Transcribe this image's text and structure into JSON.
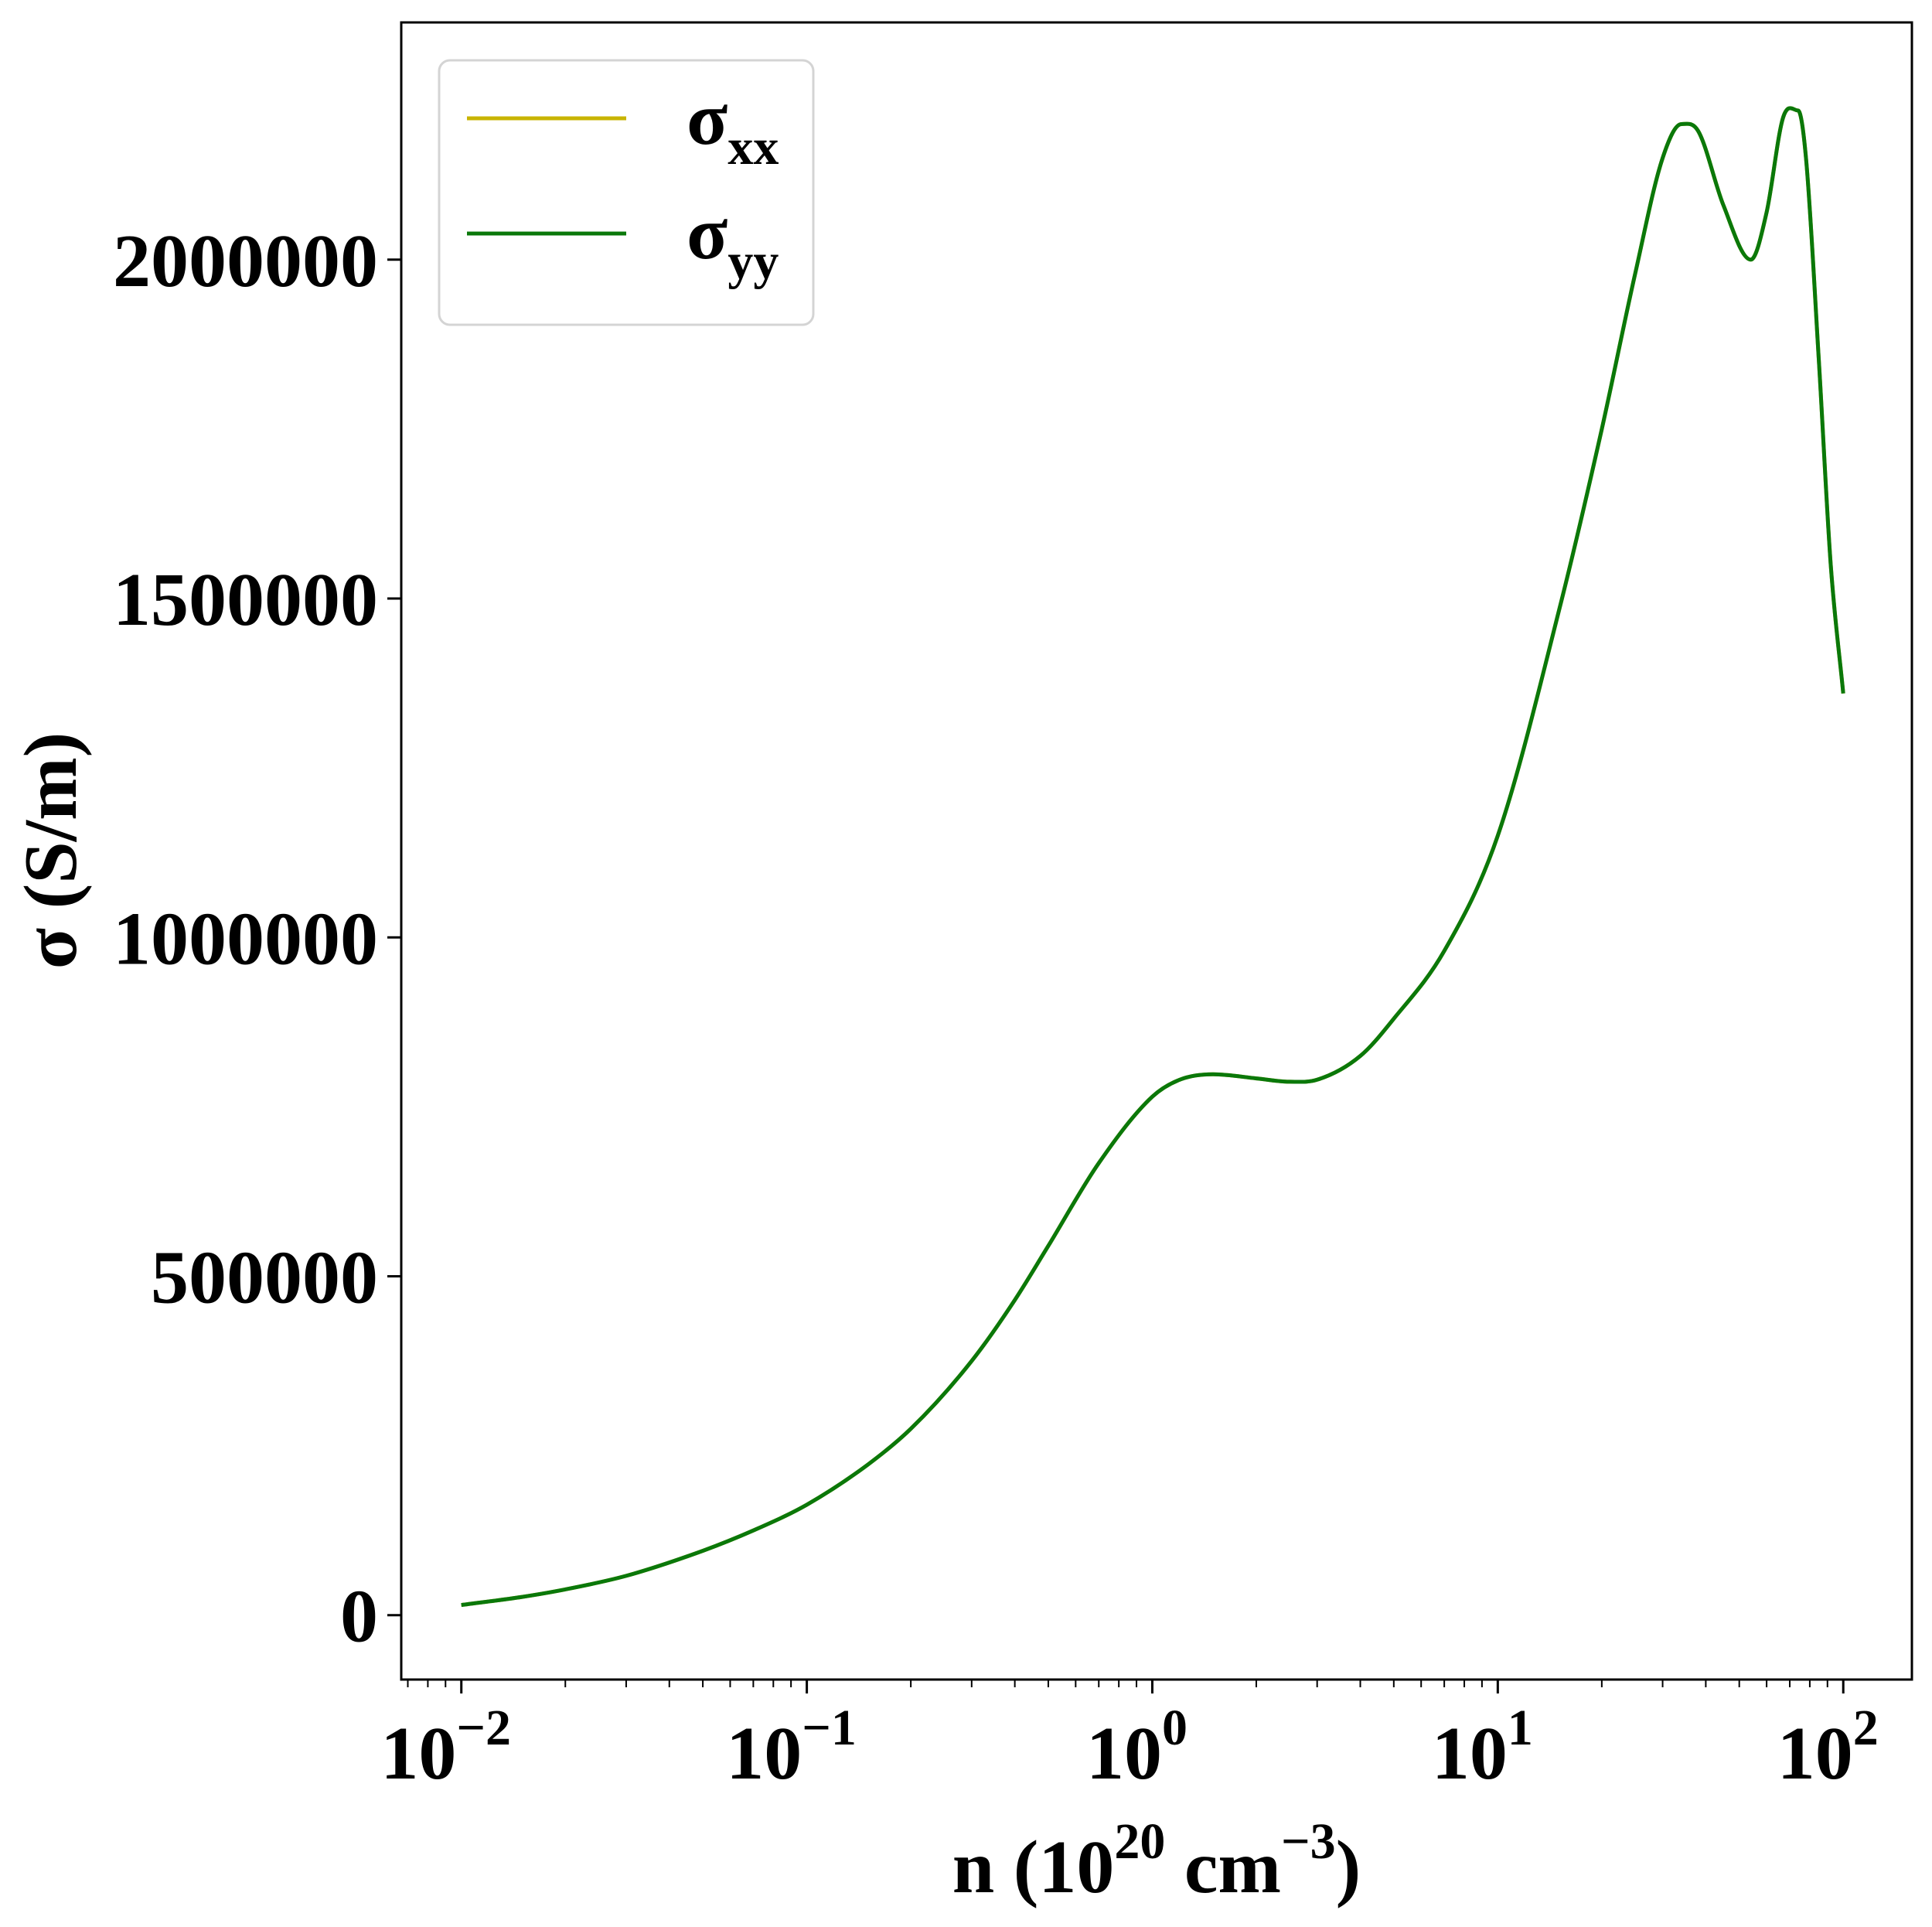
{
  "chart_data": {
    "type": "line",
    "xscale": "log",
    "xlim": [
      0.0067,
      158
    ],
    "ylim": [
      -95000,
      2350000
    ],
    "grid": false,
    "legend_position": "top-left",
    "xlabel": {
      "base": "n (10",
      "exp1": "20",
      "mid": " cm",
      "exp2": "−3",
      "end": ")"
    },
    "ylabel": "σ (S/m)",
    "x_ticks": [
      {
        "value": 0.01,
        "base": "10",
        "exp": "−2"
      },
      {
        "value": 0.1,
        "base": "10",
        "exp": "−1"
      },
      {
        "value": 1,
        "base": "10",
        "exp": "0"
      },
      {
        "value": 10,
        "base": "10",
        "exp": "1"
      },
      {
        "value": 100,
        "base": "10",
        "exp": "2"
      }
    ],
    "y_ticks": [
      {
        "value": 0,
        "label": "0"
      },
      {
        "value": 500000,
        "label": "500000"
      },
      {
        "value": 1000000,
        "label": "1000000"
      },
      {
        "value": 1500000,
        "label": "1500000"
      },
      {
        "value": 2000000,
        "label": "2000000"
      }
    ],
    "series": [
      {
        "name": "σxx",
        "legend_main": "σ",
        "legend_sub": "xx",
        "color": "#c8b400",
        "x": [
          0.01,
          0.015,
          0.02,
          0.03,
          0.05,
          0.07,
          0.1,
          0.15,
          0.2,
          0.3,
          0.4,
          0.5,
          0.7,
          1.0,
          1.2,
          1.5,
          2.0,
          2.5,
          3.0,
          4.0,
          5.0,
          7.0,
          10,
          15,
          20,
          25,
          30,
          34,
          38,
          45,
          54,
          60,
          67,
          74,
          78,
          85,
          92,
          100
        ],
        "y": [
          15000,
          27000,
          38000,
          58000,
          95000,
          125000,
          163000,
          222000,
          275000,
          375000,
          465000,
          545000,
          667000,
          765000,
          790000,
          798000,
          792000,
          787000,
          790000,
          825000,
          880000,
          980000,
          1150000,
          1480000,
          1750000,
          1980000,
          2150000,
          2200000,
          2190000,
          2080000,
          2000000,
          2070000,
          2210000,
          2220000,
          2150000,
          1850000,
          1550000,
          1360000
        ]
      },
      {
        "name": "σyy",
        "legend_main": "σ",
        "legend_sub": "yy",
        "color": "#0a780a",
        "x": [
          0.01,
          0.015,
          0.02,
          0.03,
          0.05,
          0.07,
          0.1,
          0.15,
          0.2,
          0.3,
          0.4,
          0.5,
          0.7,
          1.0,
          1.2,
          1.5,
          2.0,
          2.5,
          3.0,
          4.0,
          5.0,
          7.0,
          10,
          15,
          20,
          25,
          30,
          34,
          38,
          45,
          54,
          60,
          67,
          74,
          78,
          85,
          92,
          100
        ],
        "y": [
          15000,
          27000,
          38000,
          58000,
          95000,
          125000,
          163000,
          222000,
          275000,
          375000,
          465000,
          545000,
          667000,
          765000,
          790000,
          798000,
          792000,
          787000,
          790000,
          825000,
          880000,
          980000,
          1150000,
          1480000,
          1750000,
          1980000,
          2150000,
          2200000,
          2190000,
          2080000,
          2000000,
          2070000,
          2210000,
          2220000,
          2150000,
          1850000,
          1550000,
          1360000
        ]
      }
    ]
  }
}
